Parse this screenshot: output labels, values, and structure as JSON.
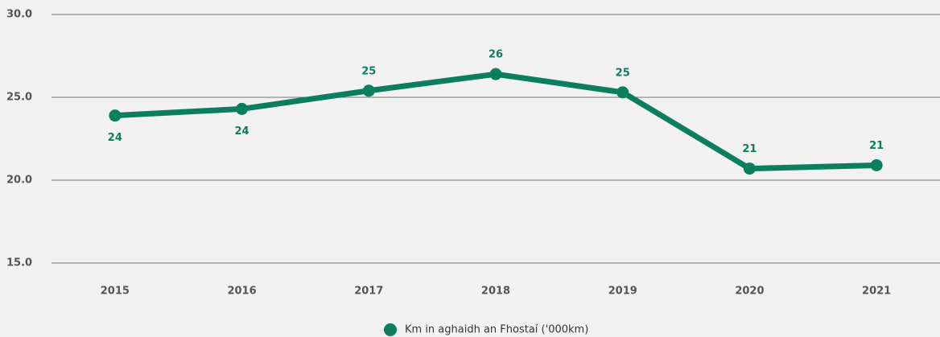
{
  "chart_data": {
    "type": "line",
    "categories": [
      "2015",
      "2016",
      "2017",
      "2018",
      "2019",
      "2020",
      "2021"
    ],
    "series": [
      {
        "name": "Km in aghaidh an Fhostaí ('000km)",
        "color": "#0b7e5f",
        "values": [
          23.9,
          24.3,
          25.4,
          26.4,
          25.3,
          20.7,
          20.9
        ],
        "value_labels": [
          "24",
          "24",
          "25",
          "26",
          "25",
          "21",
          "21"
        ]
      }
    ],
    "ylim": [
      15,
      30
    ],
    "yticks": [
      {
        "value": 15,
        "label": "15.0"
      },
      {
        "value": 20,
        "label": "20.0"
      },
      {
        "value": 25,
        "label": "25.0"
      },
      {
        "value": 30,
        "label": "30.0"
      }
    ],
    "grid": true
  }
}
